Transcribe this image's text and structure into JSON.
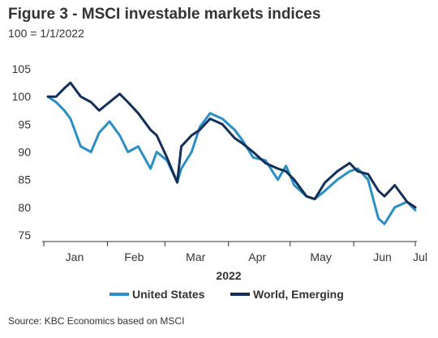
{
  "title": "Figure 3 - MSCI investable markets indices",
  "subtitle": "100 = 1/1/2022",
  "source": "Source: KBC Economics based on MSCI",
  "chart_data": {
    "type": "line",
    "title": "Figure 3 - MSCI investable markets indices",
    "subtitle": "100 = 1/1/2022",
    "xlabel": "2022",
    "ylabel": "",
    "x_ticks": [
      "Jan",
      "Feb",
      "Mar",
      "Apr",
      "May",
      "Jun",
      "Jul"
    ],
    "ylim": [
      75,
      105
    ],
    "y_ticks": [
      75,
      80,
      85,
      90,
      95,
      100,
      105
    ],
    "grid": false,
    "legend_position": "bottom",
    "x": [
      "2022-01-03",
      "2022-01-07",
      "2022-01-11",
      "2022-01-14",
      "2022-01-19",
      "2022-01-24",
      "2022-01-28",
      "2022-02-02",
      "2022-02-07",
      "2022-02-11",
      "2022-02-16",
      "2022-02-22",
      "2022-02-25",
      "2022-03-02",
      "2022-03-07",
      "2022-03-09",
      "2022-03-14",
      "2022-03-18",
      "2022-03-23",
      "2022-03-29",
      "2022-04-04",
      "2022-04-08",
      "2022-04-13",
      "2022-04-19",
      "2022-04-25",
      "2022-04-29",
      "2022-05-03",
      "2022-05-09",
      "2022-05-13",
      "2022-05-18",
      "2022-05-24",
      "2022-05-30",
      "2022-06-03",
      "2022-06-08",
      "2022-06-13",
      "2022-06-16",
      "2022-06-21",
      "2022-06-27",
      "2022-07-01"
    ],
    "series": [
      {
        "name": "United States",
        "color": "#2a8fc4",
        "values": [
          100,
          99,
          97.5,
          96,
          91,
          90,
          93.5,
          95.5,
          93,
          90,
          91,
          87,
          90,
          88.5,
          84.5,
          87,
          90,
          94.5,
          97,
          96,
          94,
          92,
          89,
          88.5,
          85,
          87.5,
          84,
          82,
          81.5,
          83,
          85,
          86.5,
          87,
          85,
          78,
          77,
          80,
          81,
          79.5
        ]
      },
      {
        "name": "World, Emerging",
        "color": "#14305a",
        "values": [
          100,
          100,
          101.5,
          102.5,
          100,
          99,
          97.5,
          99,
          100.5,
          99,
          97,
          94,
          93,
          89,
          84.5,
          91,
          93,
          94,
          96,
          95,
          92.5,
          91.5,
          90,
          88,
          87,
          86.5,
          85,
          82,
          81.5,
          84.5,
          86.5,
          88,
          86.5,
          86,
          83,
          82,
          84,
          81,
          80
        ]
      }
    ]
  },
  "legend": [
    {
      "label": "United States",
      "color": "#2a8fc4"
    },
    {
      "label": "World, Emerging",
      "color": "#14305a"
    }
  ]
}
